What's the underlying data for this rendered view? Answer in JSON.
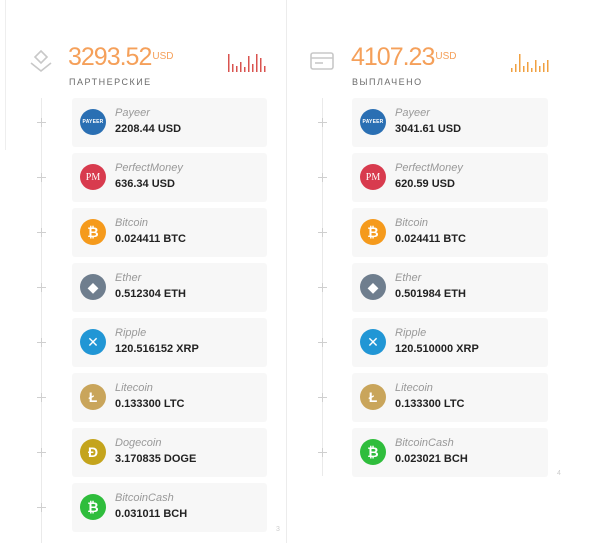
{
  "partner": {
    "amount": "3293.52",
    "currency": "USD",
    "label": "ПАРТНЕРСКИЕ",
    "icon": "hand-coin-icon",
    "accent": "#f5a05a",
    "bars_color": "#d9534f",
    "items": [
      {
        "name": "Payeer",
        "value": "2208.44 USD",
        "icon": "payeer-icon",
        "glyph": "PAYEER"
      },
      {
        "name": "PerfectMoney",
        "value": "636.34 USD",
        "icon": "perfectmoney-icon",
        "glyph": "PM"
      },
      {
        "name": "Bitcoin",
        "value": "0.024411 BTC",
        "icon": "bitcoin-icon",
        "glyph": "₿"
      },
      {
        "name": "Ether",
        "value": "0.512304 ETH",
        "icon": "ether-icon",
        "glyph": "◆"
      },
      {
        "name": "Ripple",
        "value": "120.516152 XRP",
        "icon": "ripple-icon",
        "glyph": "✕"
      },
      {
        "name": "Litecoin",
        "value": "0.133300 LTC",
        "icon": "litecoin-icon",
        "glyph": "Ł"
      },
      {
        "name": "Dogecoin",
        "value": "3.170835 DOGE",
        "icon": "dogecoin-icon",
        "glyph": "Ð"
      },
      {
        "name": "BitcoinCash",
        "value": "0.031011 BCH",
        "icon": "bitcoincash-icon",
        "glyph": "₿"
      }
    ],
    "page_number": "3"
  },
  "paid": {
    "amount": "4107.23",
    "currency": "USD",
    "label": "ВЫПЛАЧЕНО",
    "icon": "wallet-card-icon",
    "accent": "#f5a05a",
    "bars_color": "#f0a040",
    "items": [
      {
        "name": "Payeer",
        "value": "3041.61 USD",
        "icon": "payeer-icon",
        "glyph": "PAYEER"
      },
      {
        "name": "PerfectMoney",
        "value": "620.59 USD",
        "icon": "perfectmoney-icon",
        "glyph": "PM"
      },
      {
        "name": "Bitcoin",
        "value": "0.024411 BTC",
        "icon": "bitcoin-icon",
        "glyph": "₿"
      },
      {
        "name": "Ether",
        "value": "0.501984 ETH",
        "icon": "ether-icon",
        "glyph": "◆"
      },
      {
        "name": "Ripple",
        "value": "120.510000 XRP",
        "icon": "ripple-icon",
        "glyph": "✕"
      },
      {
        "name": "Litecoin",
        "value": "0.133300 LTC",
        "icon": "litecoin-icon",
        "glyph": "Ł"
      },
      {
        "name": "BitcoinCash",
        "value": "0.023021 BCH",
        "icon": "bitcoincash-icon",
        "glyph": "₿"
      }
    ],
    "page_number": "4"
  }
}
